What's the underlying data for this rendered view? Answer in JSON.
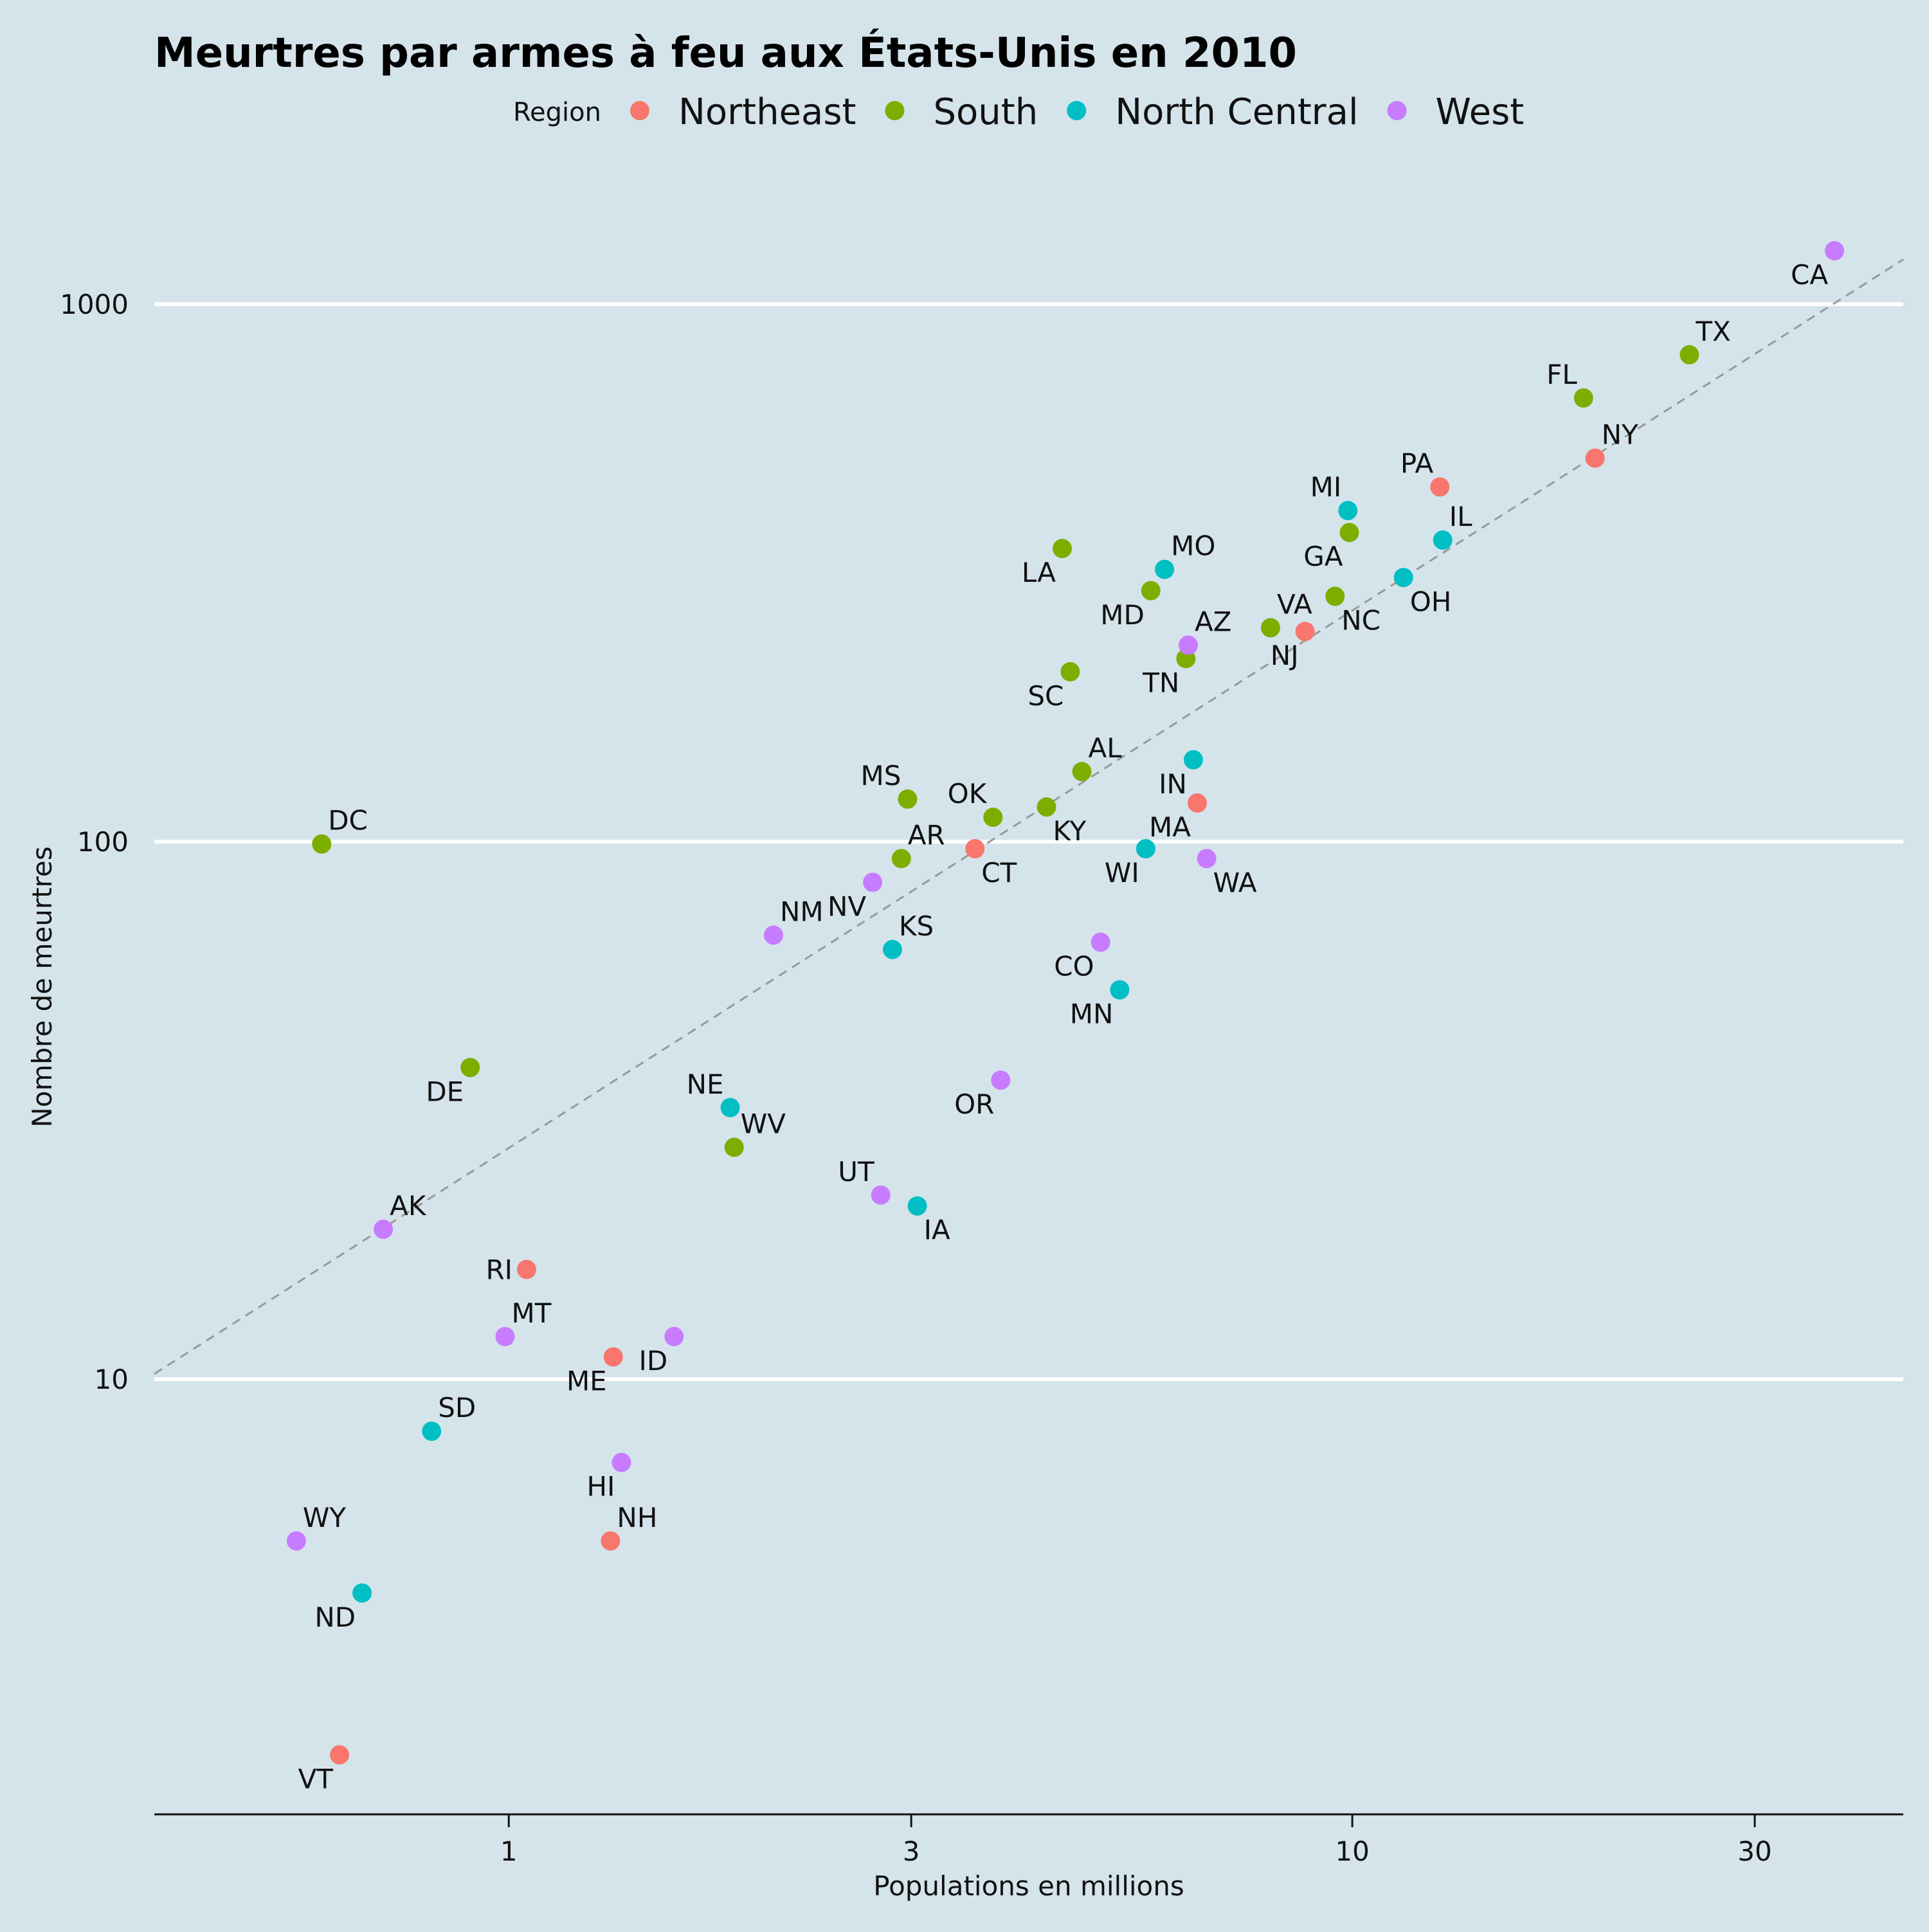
{
  "chart_data": {
    "type": "scatter",
    "title": "Meurtres par armes à feu aux États-Unis en 2010",
    "xlabel": "Populations en millions",
    "ylabel": "Nombre de meurtres",
    "x_scale": "log",
    "y_scale": "log",
    "xlim": [
      0.38,
      45
    ],
    "ylim": [
      1.55,
      1900
    ],
    "x_ticks": [
      1,
      3,
      10,
      30
    ],
    "x_tick_labels": [
      "1",
      "3",
      "10",
      "30"
    ],
    "y_ticks": [
      10,
      100,
      1000
    ],
    "y_tick_labels": [
      "10",
      "100",
      "1000"
    ],
    "grid": "horizontal major lines, white",
    "legend": {
      "title": "Region",
      "position": "top",
      "entries": [
        {
          "name": "Northeast",
          "color": "#F8766D"
        },
        {
          "name": "South",
          "color": "#7CAE00"
        },
        {
          "name": "North Central",
          "color": "#00BFC4"
        },
        {
          "name": "West",
          "color": "#C77CFF"
        }
      ]
    },
    "reference_line": {
      "style": "dashed",
      "color": "#999999",
      "slope": 1,
      "intercept_log10": 1.43
    },
    "series": [
      {
        "name": "Northeast",
        "color": "#F8766D",
        "points": [
          {
            "label": "VT",
            "x": 0.63,
            "y": 2.0,
            "anchor": "bottom-left"
          },
          {
            "label": "RI",
            "x": 1.05,
            "y": 16.0,
            "anchor": "left"
          },
          {
            "label": "ME",
            "x": 1.33,
            "y": 11.0,
            "anchor": "bottom-left"
          },
          {
            "label": "NH",
            "x": 1.32,
            "y": 5.0,
            "anchor": "top-right"
          },
          {
            "label": "CT",
            "x": 3.57,
            "y": 97.0,
            "anchor": "bottom-right"
          },
          {
            "label": "MA",
            "x": 6.55,
            "y": 118.0,
            "anchor": "bottom-left"
          },
          {
            "label": "NJ",
            "x": 8.79,
            "y": 246.0,
            "anchor": "bottom-left"
          },
          {
            "label": "PA",
            "x": 12.7,
            "y": 457.0,
            "anchor": "top-left"
          },
          {
            "label": "NY",
            "x": 19.4,
            "y": 517.0,
            "anchor": "top-right"
          }
        ]
      },
      {
        "name": "South",
        "color": "#7CAE00",
        "points": [
          {
            "label": "DC",
            "x": 0.6,
            "y": 99.0,
            "anchor": "top-right"
          },
          {
            "label": "DE",
            "x": 0.9,
            "y": 38.0,
            "anchor": "bottom-left"
          },
          {
            "label": "WV",
            "x": 1.85,
            "y": 27.0,
            "anchor": "top-right"
          },
          {
            "label": "AR",
            "x": 2.92,
            "y": 93.0,
            "anchor": "top-right"
          },
          {
            "label": "MS",
            "x": 2.97,
            "y": 120.0,
            "anchor": "top-left"
          },
          {
            "label": "OK",
            "x": 3.75,
            "y": 111.0,
            "anchor": "top-left"
          },
          {
            "label": "KY",
            "x": 4.34,
            "y": 116.0,
            "anchor": "bottom-right"
          },
          {
            "label": "LA",
            "x": 4.53,
            "y": 351.0,
            "anchor": "bottom-left"
          },
          {
            "label": "SC",
            "x": 4.63,
            "y": 207.0,
            "anchor": "bottom-left"
          },
          {
            "label": "AL",
            "x": 4.78,
            "y": 135.0,
            "anchor": "top-right"
          },
          {
            "label": "MD",
            "x": 5.77,
            "y": 293.0,
            "anchor": "bottom-left"
          },
          {
            "label": "TN",
            "x": 6.35,
            "y": 219.0,
            "anchor": "bottom-left"
          },
          {
            "label": "VA",
            "x": 8.0,
            "y": 250.0,
            "anchor": "top-right"
          },
          {
            "label": "NC",
            "x": 9.54,
            "y": 286.0,
            "anchor": "bottom-right"
          },
          {
            "label": "GA",
            "x": 9.92,
            "y": 376.0,
            "anchor": "bottom-left"
          },
          {
            "label": "FL",
            "x": 18.8,
            "y": 669.0,
            "anchor": "top-left"
          },
          {
            "label": "TX",
            "x": 25.1,
            "y": 805.0,
            "anchor": "top-right"
          }
        ]
      },
      {
        "name": "North Central",
        "color": "#00BFC4",
        "points": [
          {
            "label": "ND",
            "x": 0.67,
            "y": 4.0,
            "anchor": "bottom-left"
          },
          {
            "label": "SD",
            "x": 0.81,
            "y": 8.0,
            "anchor": "top-right"
          },
          {
            "label": "NE",
            "x": 1.83,
            "y": 32.0,
            "anchor": "top-left"
          },
          {
            "label": "KS",
            "x": 2.85,
            "y": 63.0,
            "anchor": "top-right"
          },
          {
            "label": "IA",
            "x": 3.05,
            "y": 21.0,
            "anchor": "bottom-right"
          },
          {
            "label": "MN",
            "x": 5.3,
            "y": 53.0,
            "anchor": "bottom-left"
          },
          {
            "label": "WI",
            "x": 5.69,
            "y": 97.0,
            "anchor": "bottom-left"
          },
          {
            "label": "IN",
            "x": 6.48,
            "y": 142.0,
            "anchor": "bottom-left"
          },
          {
            "label": "MO",
            "x": 5.99,
            "y": 321.0,
            "anchor": "top-right"
          },
          {
            "label": "MI",
            "x": 9.88,
            "y": 413.0,
            "anchor": "top-left"
          },
          {
            "label": "OH",
            "x": 11.5,
            "y": 310.0,
            "anchor": "bottom-right"
          },
          {
            "label": "IL",
            "x": 12.8,
            "y": 364.0,
            "anchor": "top-right"
          }
        ]
      },
      {
        "name": "West",
        "color": "#C77CFF",
        "points": [
          {
            "label": "WY",
            "x": 0.56,
            "y": 5.0,
            "anchor": "top-right"
          },
          {
            "label": "AK",
            "x": 0.71,
            "y": 19.0,
            "anchor": "top-right"
          },
          {
            "label": "MT",
            "x": 0.99,
            "y": 12.0,
            "anchor": "top-right"
          },
          {
            "label": "HI",
            "x": 1.36,
            "y": 7.0,
            "anchor": "bottom-left"
          },
          {
            "label": "ID",
            "x": 1.57,
            "y": 12.0,
            "anchor": "bottom-left"
          },
          {
            "label": "NM",
            "x": 2.06,
            "y": 67.0,
            "anchor": "top-right"
          },
          {
            "label": "NV",
            "x": 2.7,
            "y": 84.0,
            "anchor": "bottom-left"
          },
          {
            "label": "UT",
            "x": 2.76,
            "y": 22.0,
            "anchor": "top-left"
          },
          {
            "label": "OR",
            "x": 3.83,
            "y": 36.0,
            "anchor": "bottom-left"
          },
          {
            "label": "CO",
            "x": 5.03,
            "y": 65.0,
            "anchor": "bottom-left"
          },
          {
            "label": "AZ",
            "x": 6.39,
            "y": 232.0,
            "anchor": "top-right"
          },
          {
            "label": "WA",
            "x": 6.72,
            "y": 93.0,
            "anchor": "bottom-right"
          },
          {
            "label": "CA",
            "x": 37.3,
            "y": 1257.0,
            "anchor": "bottom-left"
          }
        ]
      }
    ]
  }
}
